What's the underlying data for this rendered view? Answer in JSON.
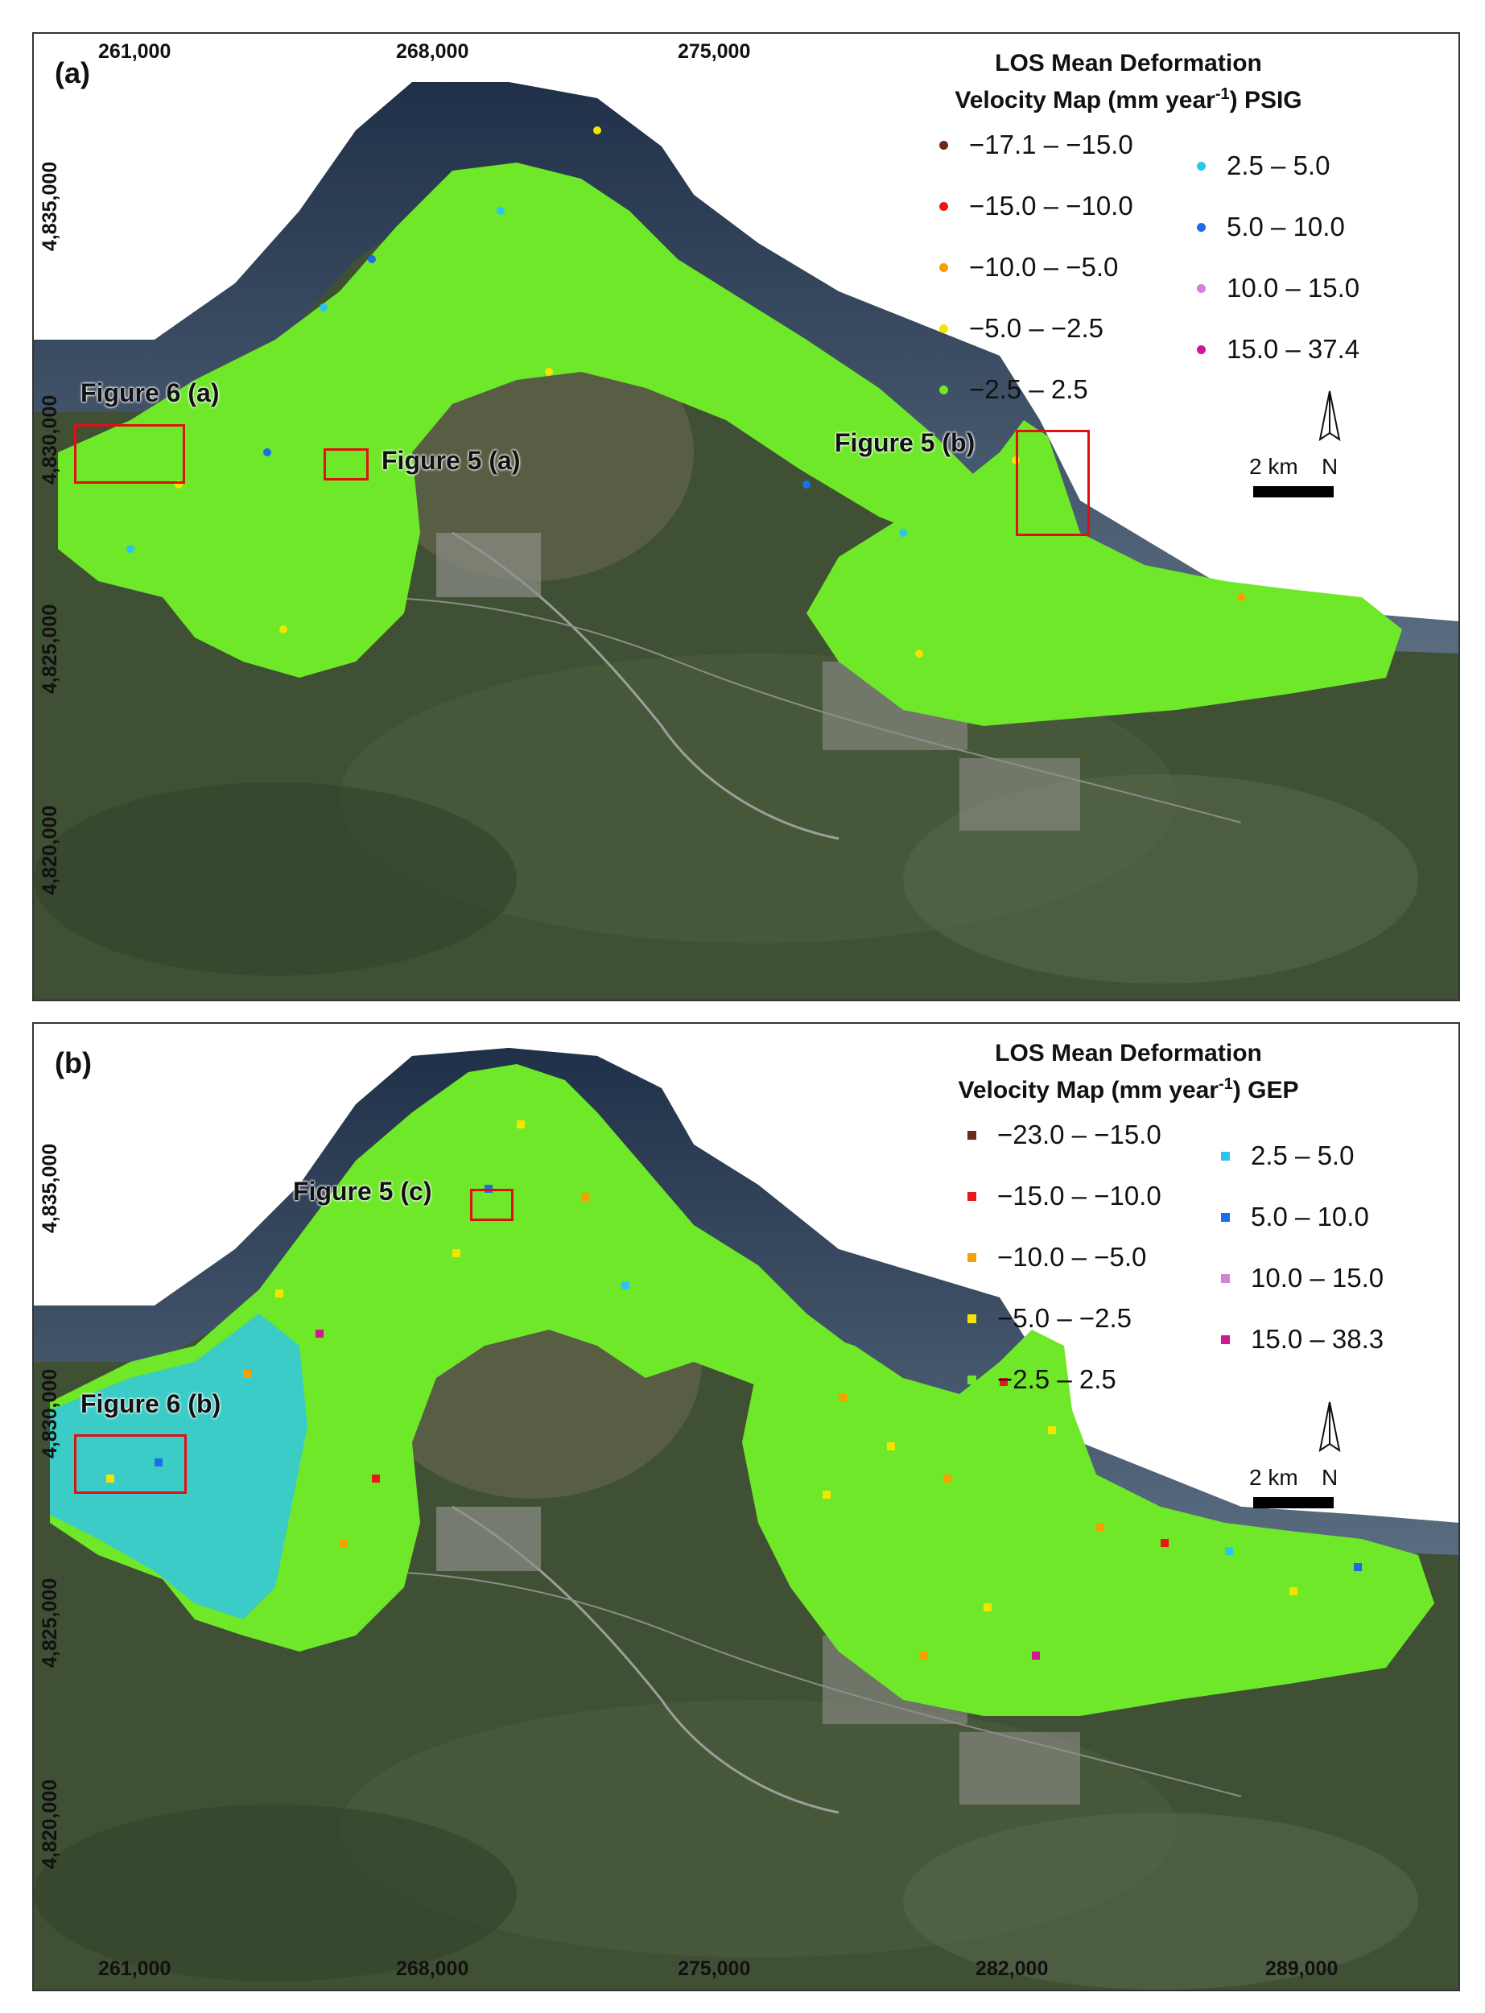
{
  "panels": [
    {
      "id": "a",
      "label": "(a)",
      "legend": {
        "title_line1": "LOS Mean Deformation",
        "title_line2_pre": "Velocity Map (mm year",
        "title_sup": "-1",
        "title_line2_post": ") PSIG",
        "marker": "dot",
        "left_items": [
          {
            "label": "−17.1 – −15.0",
            "color": "#6b2a1a"
          },
          {
            "label": "−15.0 – −10.0",
            "color": "#e81818"
          },
          {
            "label": "−10.0 – −5.0",
            "color": "#f5a000"
          },
          {
            "label": "−5.0 – −2.5",
            "color": "#f5e400"
          },
          {
            "label": "−2.5 – 2.5",
            "color": "#6ee828"
          }
        ],
        "right_items": [
          {
            "label": "2.5 – 5.0",
            "color": "#2ec4f0"
          },
          {
            "label": "5.0 – 10.0",
            "color": "#1a6fe8"
          },
          {
            "label": "10.0 – 15.0",
            "color": "#d680d6"
          },
          {
            "label": "15.0 – 37.4",
            "color": "#d01890"
          }
        ]
      },
      "x_ticks": [
        "261,000",
        "268,000",
        "275,000"
      ],
      "y_ticks": [
        "4,835,000",
        "4,830,000",
        "4,825,000",
        "4,820,000"
      ],
      "figure_labels": [
        "Figure 6 (a)",
        "Figure 5 (a)",
        "Figure 5 (b)"
      ],
      "scale_label": "2 km",
      "north_label": "N"
    },
    {
      "id": "b",
      "label": "(b)",
      "legend": {
        "title_line1": "LOS Mean Deformation",
        "title_line2_pre": "Velocity Map (mm year",
        "title_sup": "-1",
        "title_line2_post": ") GEP",
        "marker": "square",
        "left_items": [
          {
            "label": "−23.0 – −15.0",
            "color": "#6b2a1a"
          },
          {
            "label": "−15.0 – −10.0",
            "color": "#e81818"
          },
          {
            "label": "−10.0 – −5.0",
            "color": "#f5a000"
          },
          {
            "label": "−5.0 – −2.5",
            "color": "#f5e400"
          },
          {
            "label": "−2.5 – 2.5",
            "color": "#6ee828"
          }
        ],
        "right_items": [
          {
            "label": "2.5 – 5.0",
            "color": "#2ec4f0"
          },
          {
            "label": "5.0 – 10.0",
            "color": "#1a6fe8"
          },
          {
            "label": "10.0 – 15.0",
            "color": "#d680d6"
          },
          {
            "label": "15.0 – 38.3",
            "color": "#d01890"
          }
        ]
      },
      "x_ticks": [
        "261,000",
        "268,000",
        "275,000",
        "282,000",
        "289,000"
      ],
      "y_ticks": [
        "4,835,000",
        "4,830,000",
        "4,825,000",
        "4,820,000"
      ],
      "figure_labels": [
        "Figure 5 (c)",
        "Figure 6 (b)"
      ],
      "scale_label": "2 km",
      "north_label": "N"
    }
  ]
}
